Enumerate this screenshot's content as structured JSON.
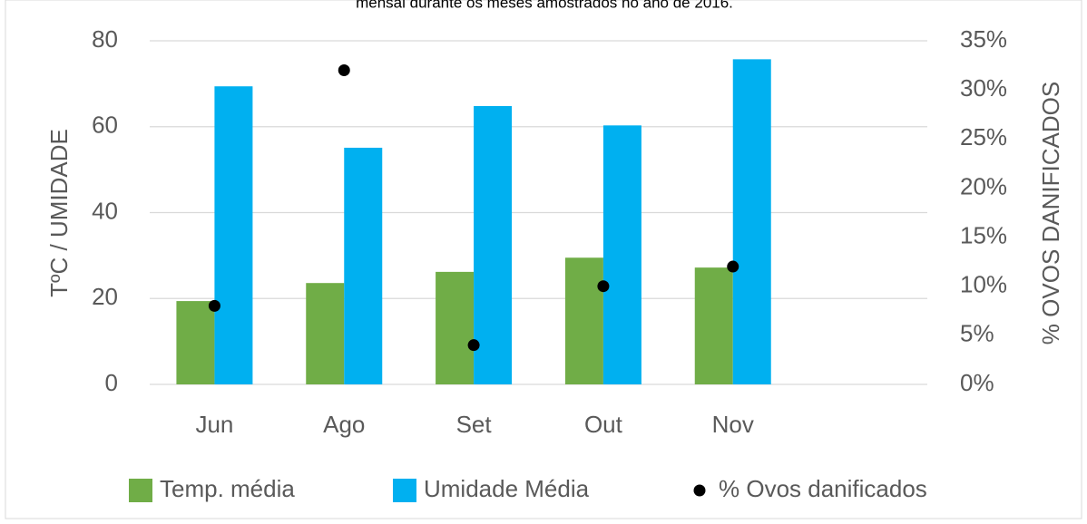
{
  "chart_data": {
    "type": "bar",
    "title": "mensal durante os meses amostrados no ano de 2016.",
    "y_label": "TºC / UMIDADE",
    "y2_label": "% OVOS DANIFICADOS",
    "categories": [
      "Jun",
      "Ago",
      "Set",
      "Out",
      "Nov",
      null
    ],
    "series": [
      {
        "name": "Temp. média",
        "color": "#70ad47",
        "type": "bar",
        "values": [
          19.4,
          23.6,
          26.2,
          29.5,
          27.2,
          null
        ]
      },
      {
        "name": "Umidade Média",
        "color": "#00b0f0",
        "type": "bar",
        "values": [
          69.4,
          55.1,
          64.8,
          60.3,
          75.7,
          null
        ]
      },
      {
        "name": "% Ovos danificados",
        "color": "#000000",
        "type": "scatter",
        "axis": "y2",
        "values": [
          8,
          32,
          4,
          10,
          12,
          null
        ]
      }
    ],
    "ylim": [
      0,
      80
    ],
    "yticks": [
      0,
      20,
      40,
      60,
      80
    ],
    "y2lim": [
      0,
      35
    ],
    "y2ticks": [
      {
        "value": 0,
        "label": "0%"
      },
      {
        "value": 5,
        "label": "5%"
      },
      {
        "value": 10,
        "label": "10%"
      },
      {
        "value": 15,
        "label": "15%"
      },
      {
        "value": 20,
        "label": "20%"
      },
      {
        "value": 25,
        "label": "25%"
      },
      {
        "value": 30,
        "label": "30%"
      },
      {
        "value": 35,
        "label": "35%"
      }
    ],
    "grid": true,
    "legend": "bottom"
  }
}
